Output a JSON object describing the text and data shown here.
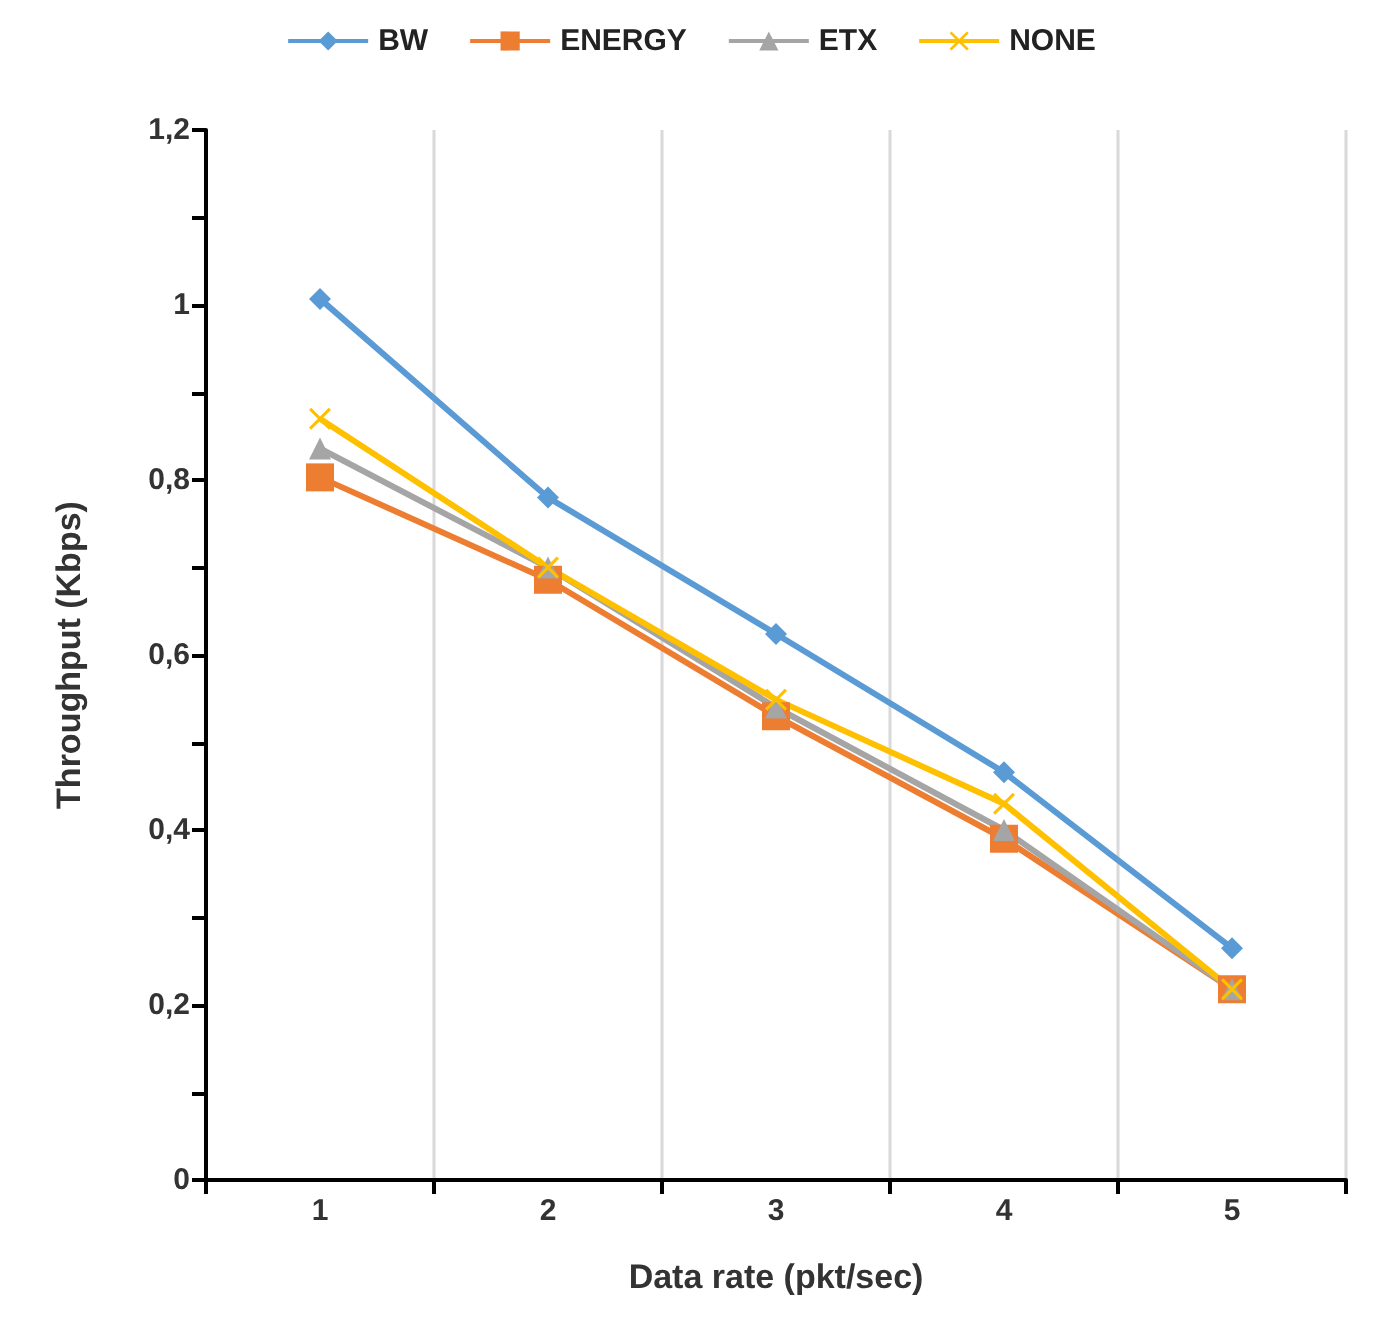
{
  "chart_data": {
    "type": "line",
    "xlabel": "Data rate (pkt/sec)",
    "ylabel": "Throughput (Kbps)",
    "categories": [
      "1",
      "2",
      "3",
      "4",
      "5"
    ],
    "series": [
      {
        "name": "BW",
        "color": "#5b9bd5",
        "marker": "diamond",
        "values": [
          1.007,
          0.78,
          0.624,
          0.466,
          0.265
        ]
      },
      {
        "name": "ENERGY",
        "color": "#ed7d31",
        "marker": "square",
        "values": [
          0.803,
          0.686,
          0.53,
          0.39,
          0.218
        ]
      },
      {
        "name": "ETX",
        "color": "#a5a5a5",
        "marker": "triangle",
        "values": [
          0.836,
          0.7,
          0.54,
          0.4,
          0.218
        ]
      },
      {
        "name": "NONE",
        "color": "#ffc000",
        "marker": "cross",
        "values": [
          0.87,
          0.7,
          0.549,
          0.43,
          0.218
        ]
      }
    ],
    "ylim": [
      0,
      1.2
    ],
    "yticks": [
      {
        "value": 0,
        "label": "0"
      },
      {
        "value": 0.1,
        "label": null
      },
      {
        "value": 0.2,
        "label": "0,2"
      },
      {
        "value": 0.3,
        "label": null
      },
      {
        "value": 0.4,
        "label": "0,4"
      },
      {
        "value": 0.5,
        "label": null
      },
      {
        "value": 0.6,
        "label": "0,6"
      },
      {
        "value": 0.7,
        "label": null
      },
      {
        "value": 0.8,
        "label": "0,8"
      },
      {
        "value": 0.9,
        "label": null
      },
      {
        "value": 1,
        "label": "1"
      },
      {
        "value": 1.1,
        "label": null
      },
      {
        "value": 1.2,
        "label": "1,2"
      }
    ],
    "grid": "x",
    "legend": "top",
    "line_style": "solid"
  }
}
